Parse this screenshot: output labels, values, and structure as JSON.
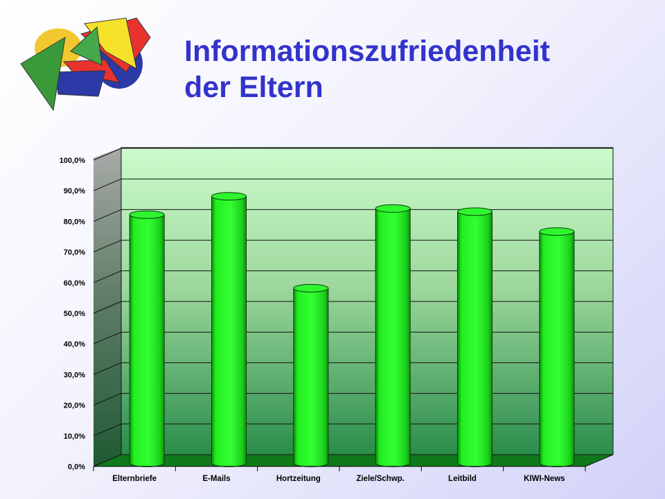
{
  "slide": {
    "title_line1": "Informationszufriedenheit",
    "title_line2": "der Eltern"
  },
  "logo": {
    "icon": "colorful-geometric-shapes-logo"
  },
  "colors": {
    "title": "#3333cc",
    "bar": "#22ee22",
    "bar_dark": "#0a8f0a",
    "floor": "#0f7a1a",
    "back_wall_top": "#ccfccc",
    "back_wall_bottom": "#2a8c4a",
    "gridline": "#111111"
  },
  "chart_data": {
    "type": "bar",
    "style": "3d-cylinder",
    "categories": [
      "Elternbriefe",
      "E-Mails",
      "Hortzeitung",
      "Ziele/Schwp.",
      "Leitbild",
      "KIWI-News"
    ],
    "values": [
      81.5,
      87.5,
      57.5,
      83.5,
      82.5,
      76.0
    ],
    "y_ticks": [
      "0,0%",
      "10,0%",
      "20,0%",
      "30,0%",
      "40,0%",
      "50,0%",
      "60,0%",
      "70,0%",
      "80,0%",
      "90,0%",
      "100,0%"
    ],
    "ylim": [
      0,
      100
    ],
    "unit": "%",
    "grid": true,
    "legend": "none"
  }
}
